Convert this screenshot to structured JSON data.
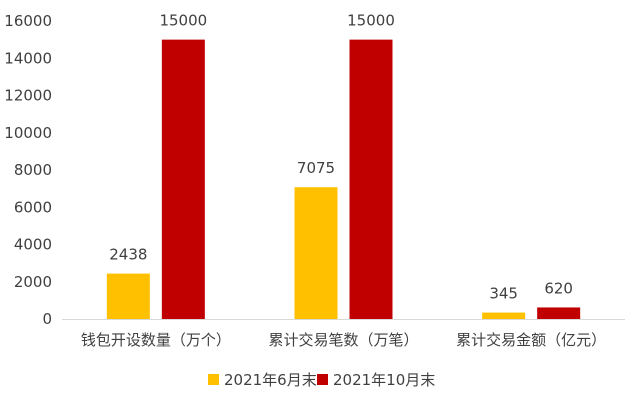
{
  "chart_data": {
    "type": "bar",
    "categories": [
      "钱包开设数量（万个）",
      "累计交易笔数（万笔）",
      "累计交易金额（亿元）"
    ],
    "series": [
      {
        "name": "2021年6月末",
        "values": [
          2438,
          7075,
          345
        ],
        "color": "#FFC000"
      },
      {
        "name": "2021年10月末",
        "values": [
          15000,
          15000,
          620
        ],
        "color": "#C00000"
      }
    ],
    "ylim": [
      0,
      16000
    ],
    "yticks": [
      0,
      2000,
      4000,
      6000,
      8000,
      10000,
      12000,
      14000,
      16000
    ],
    "grid": false,
    "legend_position": "bottom-center",
    "data_labels": true
  }
}
